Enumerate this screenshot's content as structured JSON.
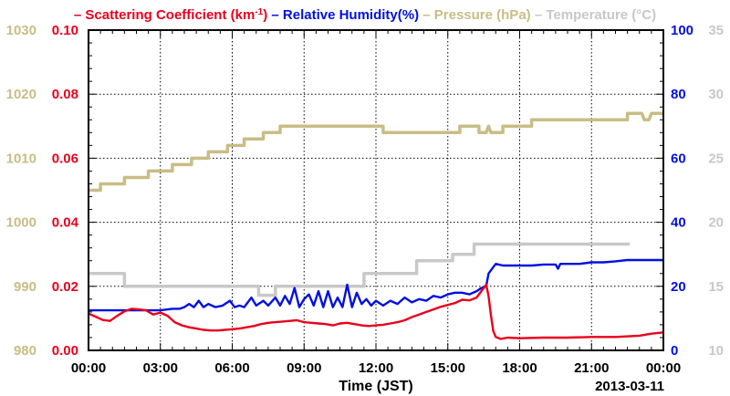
{
  "chart_data": {
    "type": "line",
    "xlabel": "Time (JST)",
    "date_label": "2013-03-11",
    "grid": true,
    "legend_position": "top",
    "x_ticks": [
      "00:00",
      "03:00",
      "06:00",
      "09:00",
      "12:00",
      "15:00",
      "18:00",
      "21:00",
      "00:00"
    ],
    "x_range_hours": [
      0,
      24
    ],
    "axes": {
      "pressure": {
        "range": [
          980,
          1030
        ],
        "ticks": [
          "980",
          "990",
          "1000",
          "1010",
          "1020",
          "1030"
        ],
        "color": "#c8bd86"
      },
      "scattering": {
        "range": [
          0.0,
          0.1
        ],
        "ticks": [
          "0.00",
          "0.02",
          "0.04",
          "0.06",
          "0.08",
          "0.10"
        ],
        "color": "#e8001c"
      },
      "humidity": {
        "range": [
          0,
          100
        ],
        "ticks": [
          "0",
          "20",
          "40",
          "60",
          "80",
          "100"
        ],
        "color": "#0010e0"
      },
      "temperature": {
        "range": [
          10,
          35
        ],
        "ticks": [
          "10",
          "15",
          "20",
          "25",
          "30",
          "35"
        ],
        "color": "#c8c8c8"
      }
    },
    "legend": [
      {
        "dash": "–",
        "label": "Scattering Coefficient (km",
        "sup": "-1",
        "after": ")",
        "color": "#e8001c"
      },
      {
        "dash": "–",
        "label": "Relative Humidity(%)",
        "color": "#0010e0"
      },
      {
        "dash": "–",
        "label": "Pressure (hPa)",
        "color": "#c8bd86"
      },
      {
        "dash": "–",
        "label": "Temperature (°C)",
        "color": "#c8c8c8"
      }
    ],
    "series": [
      {
        "name": "Pressure (hPa)",
        "axis": "pressure",
        "color": "#c8bd86",
        "x": [
          0.0,
          0.5,
          0.5,
          1.5,
          1.5,
          2.5,
          2.5,
          3.5,
          3.5,
          4.3,
          4.3,
          5.0,
          5.0,
          5.8,
          5.8,
          6.5,
          6.5,
          7.3,
          7.3,
          8.0,
          8.0,
          12.3,
          12.3,
          15.5,
          15.5,
          16.3,
          16.3,
          16.6,
          16.7,
          16.8,
          17.3,
          17.3,
          18.5,
          18.5,
          22.5,
          22.5,
          23.1,
          23.2,
          23.4,
          23.5,
          24.0
        ],
        "y": [
          1005.0,
          1005.0,
          1006.0,
          1006.0,
          1007.0,
          1007.0,
          1008.0,
          1008.0,
          1009.0,
          1009.0,
          1010.0,
          1010.0,
          1011.0,
          1011.0,
          1012.0,
          1012.0,
          1013.0,
          1013.0,
          1014.0,
          1014.0,
          1015.0,
          1015.0,
          1014.0,
          1014.0,
          1015.0,
          1015.0,
          1014.0,
          1014.0,
          1015.0,
          1014.0,
          1014.0,
          1015.0,
          1015.0,
          1016.0,
          1016.0,
          1017.0,
          1017.0,
          1016.0,
          1016.0,
          1017.0,
          1017.0
        ]
      },
      {
        "name": "Temperature (°C)",
        "axis": "temperature",
        "color": "#c8c8c8",
        "x": [
          0.0,
          1.5,
          1.5,
          7.1,
          7.1,
          7.8,
          7.8,
          11.5,
          11.5,
          13.7,
          13.7,
          15.2,
          15.2,
          16.1,
          16.1,
          22.6
        ],
        "y": [
          16.0,
          16.0,
          15.0,
          15.0,
          14.3,
          14.3,
          15.0,
          15.0,
          16.0,
          16.0,
          17.0,
          17.0,
          17.5,
          17.5,
          18.3,
          18.3
        ]
      },
      {
        "name": "Relative Humidity(%)",
        "axis": "humidity",
        "color": "#0010e0",
        "x": [
          0.0,
          0.5,
          1.0,
          1.5,
          2.0,
          2.5,
          3.0,
          3.5,
          3.8,
          4.0,
          4.2,
          4.4,
          4.6,
          4.8,
          5.0,
          5.3,
          5.6,
          5.9,
          6.1,
          6.3,
          6.5,
          6.8,
          7.0,
          7.3,
          7.5,
          7.8,
          8.0,
          8.2,
          8.4,
          8.6,
          8.8,
          9.0,
          9.2,
          9.4,
          9.6,
          9.8,
          10.0,
          10.2,
          10.4,
          10.6,
          10.8,
          11.0,
          11.2,
          11.4,
          11.6,
          11.8,
          12.0,
          12.3,
          12.6,
          12.9,
          13.2,
          13.5,
          13.8,
          14.1,
          14.4,
          14.7,
          15.0,
          15.3,
          15.6,
          15.9,
          16.2,
          16.4,
          16.6,
          16.7,
          16.9,
          17.0,
          17.3,
          18.5,
          19.0,
          19.5,
          19.6,
          19.7,
          20.0,
          20.5,
          21.0,
          21.5,
          22.0,
          22.5,
          23.0,
          23.5,
          24.0
        ],
        "y": [
          12.5,
          12.5,
          12.5,
          12.5,
          12.5,
          12.5,
          12.5,
          13.0,
          13.0,
          13.5,
          14.5,
          13.5,
          15.5,
          13.5,
          14.5,
          13.5,
          14.0,
          15.5,
          13.5,
          14.0,
          13.5,
          16.5,
          14.0,
          15.5,
          14.0,
          16.5,
          14.0,
          17.0,
          14.5,
          19.5,
          13.5,
          16.0,
          17.5,
          14.0,
          18.5,
          13.5,
          18.5,
          13.5,
          16.5,
          13.5,
          20.5,
          13.5,
          18.0,
          14.5,
          16.0,
          14.0,
          15.5,
          14.0,
          15.5,
          14.5,
          16.5,
          15.0,
          16.0,
          15.5,
          17.0,
          16.5,
          17.5,
          18.0,
          18.0,
          17.5,
          18.5,
          19.5,
          20.0,
          24.0,
          26.0,
          27.0,
          26.5,
          26.5,
          26.8,
          26.8,
          25.5,
          27.0,
          27.0,
          27.0,
          27.5,
          27.5,
          27.8,
          28.2,
          28.2,
          28.2,
          28.2
        ]
      },
      {
        "name": "Scattering Coefficient (km-1)",
        "axis": "scattering",
        "color": "#e8001c",
        "x": [
          0.0,
          0.3,
          0.6,
          0.9,
          1.2,
          1.5,
          1.8,
          2.1,
          2.4,
          2.7,
          3.0,
          3.3,
          3.6,
          3.9,
          4.2,
          4.5,
          4.8,
          5.1,
          5.4,
          5.7,
          6.0,
          6.3,
          6.6,
          6.9,
          7.2,
          7.5,
          7.8,
          8.1,
          8.4,
          8.7,
          9.0,
          9.3,
          9.6,
          9.9,
          10.2,
          10.5,
          10.8,
          11.1,
          11.4,
          11.7,
          12.0,
          12.3,
          12.6,
          12.9,
          13.2,
          13.5,
          13.8,
          14.1,
          14.4,
          14.7,
          15.0,
          15.3,
          15.6,
          15.9,
          16.2,
          16.4,
          16.6,
          16.7,
          16.8,
          16.9,
          17.0,
          17.2,
          17.5,
          18.0,
          19.0,
          20.0,
          21.0,
          22.0,
          23.0,
          23.5,
          24.0
        ],
        "y": [
          0.0115,
          0.0105,
          0.0095,
          0.0092,
          0.0108,
          0.0122,
          0.013,
          0.0128,
          0.0125,
          0.0112,
          0.0118,
          0.0108,
          0.0088,
          0.0078,
          0.0072,
          0.0068,
          0.0064,
          0.0062,
          0.0062,
          0.0064,
          0.0066,
          0.0068,
          0.0072,
          0.0076,
          0.0082,
          0.0086,
          0.0088,
          0.009,
          0.0092,
          0.0094,
          0.0088,
          0.0086,
          0.0084,
          0.0082,
          0.0078,
          0.0084,
          0.0086,
          0.0082,
          0.0078,
          0.0076,
          0.0078,
          0.008,
          0.0084,
          0.0088,
          0.0094,
          0.0104,
          0.0112,
          0.012,
          0.0128,
          0.0136,
          0.0142,
          0.0148,
          0.0158,
          0.0156,
          0.0165,
          0.0185,
          0.0205,
          0.017,
          0.011,
          0.006,
          0.0042,
          0.0036,
          0.004,
          0.0038,
          0.004,
          0.004,
          0.0042,
          0.0042,
          0.0046,
          0.0052,
          0.0056
        ]
      }
    ]
  }
}
